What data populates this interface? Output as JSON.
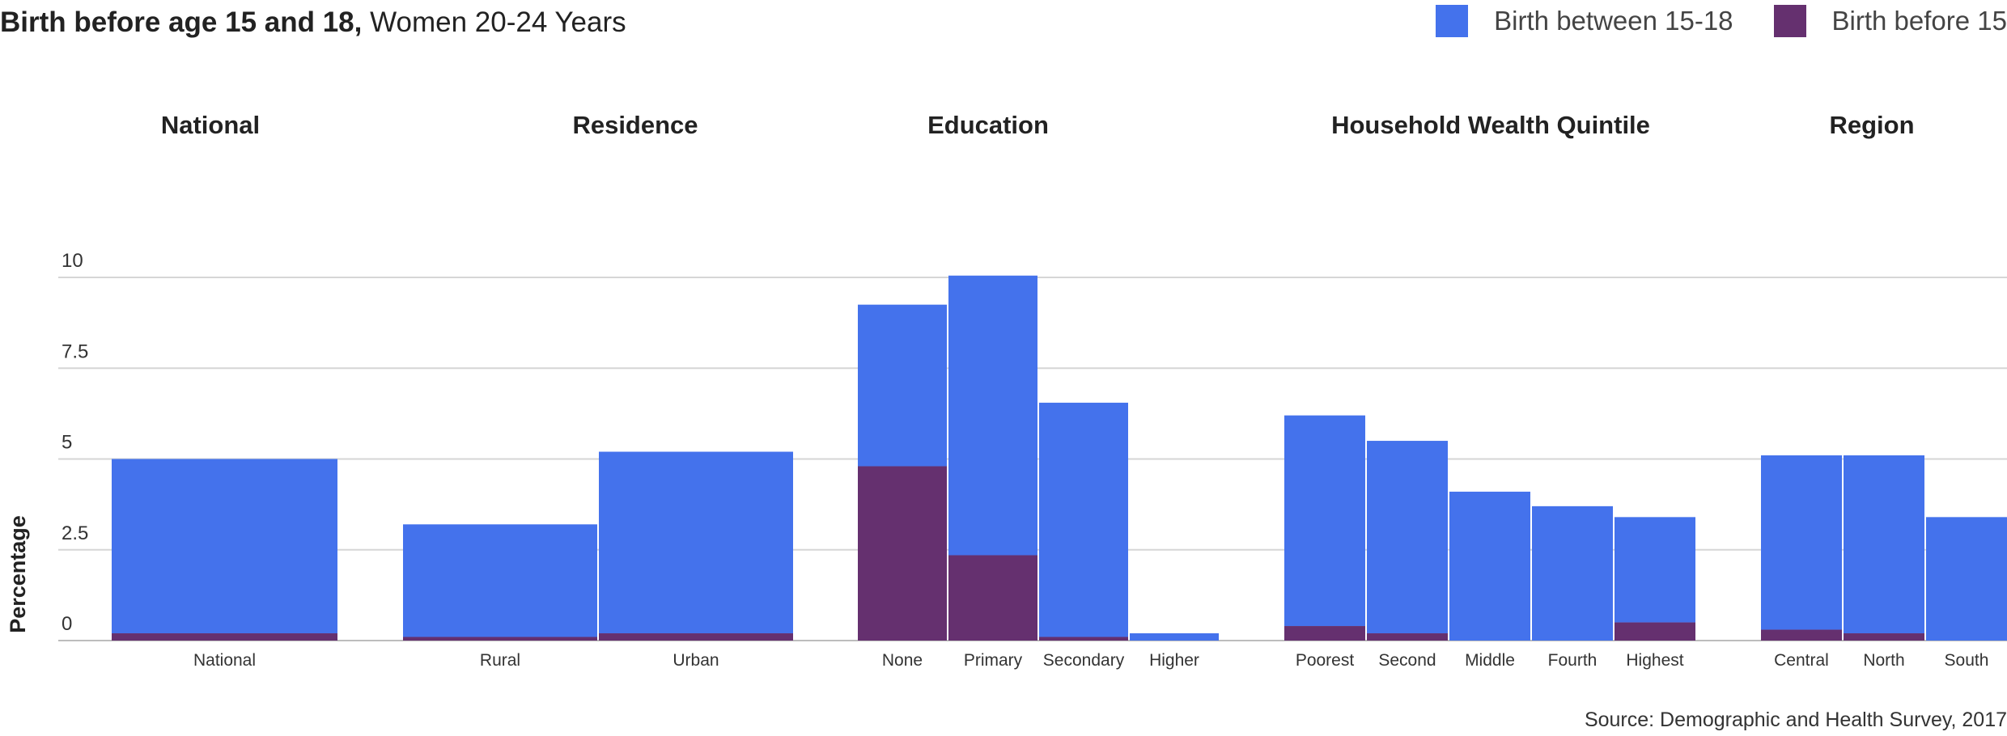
{
  "title_bold": "Birth before age 15 and 18,",
  "title_rest": " Women 20-24 Years",
  "legend": [
    {
      "label": "Birth between 15-18",
      "color": "#4472ec"
    },
    {
      "label": "Birth before 15",
      "color": "#65306f"
    }
  ],
  "source": "Source: Demographic and Health Survey, 2017",
  "chart_data": {
    "type": "bar",
    "stacked": true,
    "ylabel": "Percentage",
    "ylim": [
      0,
      10
    ],
    "yticks": [
      {
        "value": 0,
        "label": "0"
      },
      {
        "value": 2.5,
        "label": "2.5"
      },
      {
        "value": 5,
        "label": "5"
      },
      {
        "value": 7.5,
        "label": "7.5"
      },
      {
        "value": 10,
        "label": "10"
      }
    ],
    "grid": true,
    "legend_position": "top-right",
    "groups": [
      {
        "name": "National",
        "categories": [
          "National"
        ]
      },
      {
        "name": "Residence",
        "categories": [
          "Rural",
          "Urban"
        ]
      },
      {
        "name": "Education",
        "categories": [
          "None",
          "Primary",
          "Secondary",
          "Higher"
        ]
      },
      {
        "name": "Household Wealth Quintile",
        "categories": [
          "Poorest",
          "Second",
          "Middle",
          "Fourth",
          "Highest"
        ]
      },
      {
        "name": "Region",
        "categories": [
          "Central",
          "North",
          "South"
        ]
      }
    ],
    "categories": [
      "National",
      "Rural",
      "Urban",
      "None",
      "Primary",
      "Secondary",
      "Higher",
      "Poorest",
      "Second",
      "Middle",
      "Fourth",
      "Highest",
      "Central",
      "North",
      "South"
    ],
    "series": [
      {
        "name": "Birth before 15",
        "values": [
          0.2,
          0.1,
          0.2,
          4.8,
          2.35,
          0.1,
          0.0,
          0.4,
          0.2,
          0.0,
          0.0,
          0.5,
          0.3,
          0.2,
          0.0
        ]
      },
      {
        "name": "Birth between 15-18",
        "values": [
          4.8,
          3.1,
          5.0,
          4.45,
          7.7,
          6.45,
          0.2,
          5.8,
          5.3,
          4.1,
          3.7,
          2.9,
          4.8,
          4.9,
          3.4
        ]
      }
    ]
  }
}
